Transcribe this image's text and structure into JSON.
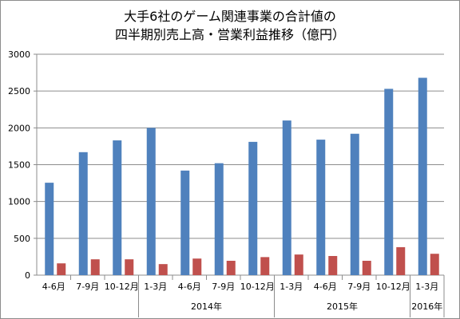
{
  "chart_data": {
    "type": "bar",
    "title_lines": [
      "大手6社のゲーム関連事業の合計値の",
      "四半期別売上高・営業利益推移（億円）"
    ],
    "categories": [
      "4-6月",
      "7-9月",
      "10-12月",
      "1-3月",
      "4-6月",
      "7-9月",
      "10-12月",
      "1-3月",
      "4-6月",
      "7-9月",
      "10-12月",
      "1-3月"
    ],
    "year_groups": [
      {
        "label": "",
        "count": 3
      },
      {
        "label": "2014年",
        "count": 4
      },
      {
        "label": "2015年",
        "count": 4
      },
      {
        "label": "2016年",
        "count": 1
      }
    ],
    "series": [
      {
        "values": [
          1255,
          1670,
          1830,
          2000,
          1420,
          1520,
          1810,
          2100,
          1840,
          1920,
          2530,
          2680
        ],
        "color": "#4f81bd"
      },
      {
        "values": [
          160,
          215,
          215,
          150,
          225,
          195,
          245,
          280,
          260,
          195,
          380,
          290
        ],
        "color": "#c0504d"
      }
    ],
    "ylim": [
      0,
      3000
    ],
    "yticks": [
      0,
      500,
      1000,
      1500,
      2000,
      2500,
      3000
    ],
    "grid": true
  }
}
